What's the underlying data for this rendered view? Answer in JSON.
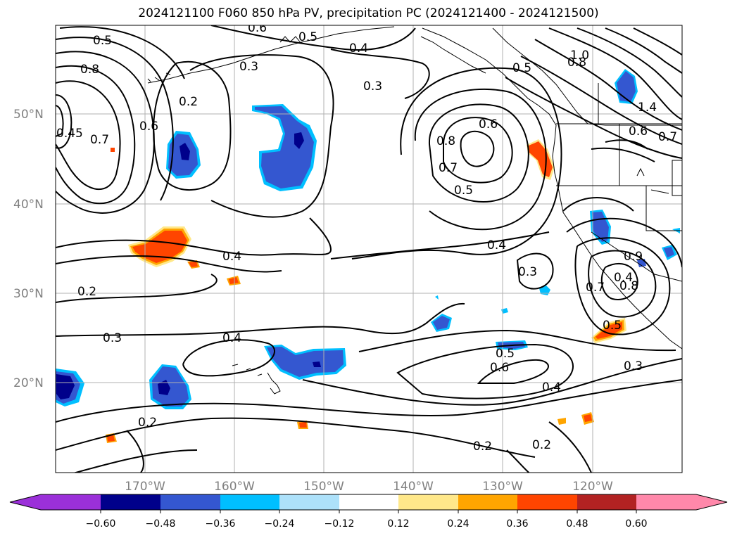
{
  "title": "2024121100 F060 850 hPa PV, precipitation PC (2024121400 - 2024121500)",
  "map": {
    "lat_labels": [
      "50°N",
      "40°N",
      "30°N",
      "20°N"
    ],
    "lon_labels": [
      "170°W",
      "160°W",
      "150°W",
      "140°W",
      "130°W",
      "120°W"
    ],
    "contour_labels": {
      "c_05_tl": "0.5",
      "c_06_top": "0.6",
      "c_05_top": "0.5",
      "c_04_top": "0.4",
      "c_03_top": "0.3",
      "c_08_left": "0.8",
      "c_02_a": "0.2",
      "c_06_b": "0.6",
      "c_07_left": "0.7",
      "c_045": "0.45",
      "c_03_mid": "0.3",
      "c_06_low": "0.6",
      "c_08_low": "0.8",
      "c_07_low": "0.7",
      "c_05_low": "0.5",
      "c_05_coast": "0.5",
      "c_10_tr": "1.0",
      "c_08_tr": "0.8",
      "c_14": "1.4",
      "c_06_tr": "0.6",
      "c_07_tr": "0.7",
      "c_04_mid": "0.4",
      "c_04_c": "0.4",
      "c_03_c": "0.3",
      "c_02_c": "0.2",
      "c_03_w": "0.3",
      "c_04_s": "0.4",
      "c_05_s": "0.5",
      "c_06_s": "0.6",
      "c_04_se": "0.4",
      "c_03_se": "0.3",
      "c_02_sw": "0.2",
      "c_02_s": "0.2",
      "c_02_s2": "0.2",
      "c_09_e": "0.9",
      "c_07_e": "0.7",
      "c_08_e": "0.8",
      "c_05_e": "0.5",
      "c_4_e": "0.4"
    }
  },
  "colorbar": {
    "tick_labels": [
      "−0.60",
      "−0.48",
      "−0.36",
      "−0.24",
      "−0.12",
      "0.12",
      "0.24",
      "0.36",
      "0.48",
      "0.60"
    ],
    "colors": [
      "#9b30d9",
      "#00008b",
      "#3457d0",
      "#00bfff",
      "#ade1fa",
      "#ffffff",
      "#ffe88a",
      "#ffa500",
      "#ff4500",
      "#b22222",
      "#ff88aa"
    ]
  },
  "palette": {
    "neg_dark": "#00008b",
    "neg_mid": "#3457d0",
    "neg_light": "#00bfff",
    "pos_light": "#ffe88a",
    "pos_mid": "#ffa500",
    "pos_dark": "#ff4500"
  }
}
